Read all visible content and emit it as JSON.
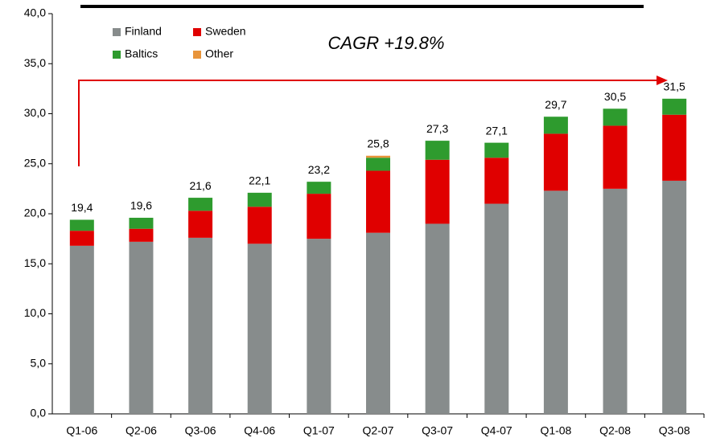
{
  "chart_data": {
    "type": "stacked_bar",
    "annotation": "CAGR +19.8%",
    "categories": [
      "Q1-06",
      "Q2-06",
      "Q3-06",
      "Q4-06",
      "Q1-07",
      "Q2-07",
      "Q3-07",
      "Q4-07",
      "Q1-08",
      "Q2-08",
      "Q3-08"
    ],
    "series": [
      {
        "name": "Finland",
        "color": "#878c8c",
        "values": [
          16.8,
          17.2,
          17.6,
          17.0,
          17.5,
          18.1,
          19.0,
          21.0,
          22.3,
          22.5,
          23.3
        ]
      },
      {
        "name": "Sweden",
        "color": "#e00000",
        "values": [
          1.5,
          1.3,
          2.7,
          3.7,
          4.5,
          6.2,
          6.4,
          4.6,
          5.7,
          6.3,
          6.6
        ]
      },
      {
        "name": "Baltics",
        "color": "#2e9b2e",
        "values": [
          1.1,
          1.1,
          1.3,
          1.4,
          1.2,
          1.3,
          1.9,
          1.5,
          1.7,
          1.7,
          1.6
        ]
      },
      {
        "name": "Other",
        "color": "#e8943a",
        "values": [
          0,
          0,
          0,
          0,
          0,
          0.2,
          0,
          0,
          0,
          0,
          0
        ]
      }
    ],
    "totals": [
      19.4,
      19.6,
      21.6,
      22.1,
      23.2,
      25.8,
      27.3,
      27.1,
      29.7,
      30.5,
      31.5
    ],
    "total_labels": [
      "19,4",
      "19,6",
      "21,6",
      "22,1",
      "23,2",
      "25,8",
      "27,3",
      "27,1",
      "29,7",
      "30,5",
      "31,5"
    ],
    "ylim": [
      0,
      40
    ],
    "yticks": [
      {
        "value": 0,
        "label": "0,0"
      },
      {
        "value": 5,
        "label": "5,0"
      },
      {
        "value": 10,
        "label": "10,0"
      },
      {
        "value": 15,
        "label": "15,0"
      },
      {
        "value": 20,
        "label": "20,0"
      },
      {
        "value": 25,
        "label": "25,0"
      },
      {
        "value": 30,
        "label": "30,0"
      },
      {
        "value": 35,
        "label": "35,0"
      },
      {
        "value": 40,
        "label": "40,0"
      }
    ],
    "grid": false
  }
}
